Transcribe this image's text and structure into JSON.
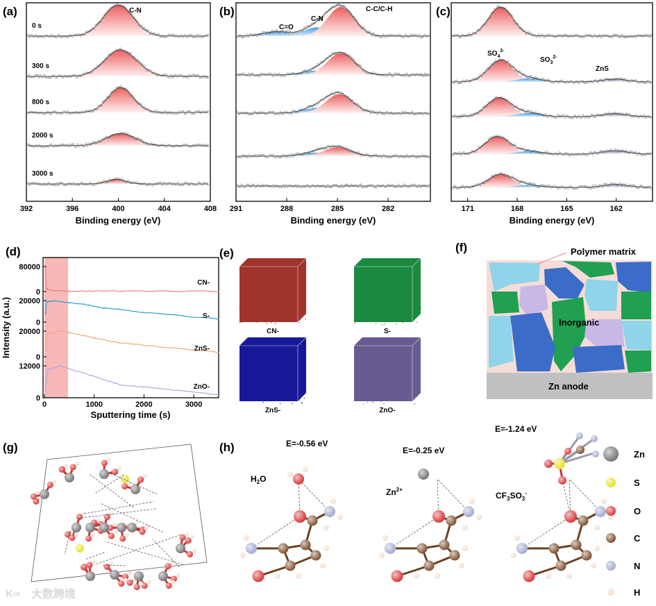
{
  "panel_labels": [
    "(a)",
    "(b)",
    "(c)",
    "(d)",
    "(e)",
    "(f)",
    "(g)",
    "(h)"
  ],
  "chart_data": [
    {
      "id": "a",
      "type": "line",
      "title": "",
      "xlabel": "Binding energy (eV)",
      "ylabel": "",
      "xlim": [
        392,
        408
      ],
      "xticks": [
        392,
        396,
        400,
        404,
        408
      ],
      "peak_label": "C-N",
      "series": [
        {
          "name": "0 s",
          "peaks": [
            {
              "center": 400.0,
              "height": 1.0,
              "width": 1.3
            }
          ]
        },
        {
          "name": "300 s",
          "peaks": [
            {
              "center": 400.2,
              "height": 0.85,
              "width": 1.4
            }
          ]
        },
        {
          "name": "800 s",
          "peaks": [
            {
              "center": 400.2,
              "height": 0.8,
              "width": 1.1
            }
          ]
        },
        {
          "name": "2000 s",
          "peaks": [
            {
              "center": 400.2,
              "height": 0.4,
              "width": 1.3
            }
          ]
        },
        {
          "name": "3000 s",
          "peaks": [
            {
              "center": 399.8,
              "height": 0.15,
              "width": 0.8
            }
          ]
        }
      ]
    },
    {
      "id": "b",
      "type": "line",
      "xlabel": "Binding energy (eV)",
      "xlim": [
        291,
        279.5
      ],
      "xticks": [
        291,
        288,
        285,
        282
      ],
      "peak_labels": [
        "C=O",
        "C-N",
        "C-C/C-H"
      ],
      "series": [
        {
          "name": "0 s",
          "peaks": [
            {
              "label": "C=O",
              "center": 288.6,
              "height": 0.15
            },
            {
              "label": "C-N",
              "center": 286.2,
              "height": 0.3
            },
            {
              "label": "C-C/C-H",
              "center": 284.8,
              "height": 1.0
            }
          ]
        },
        {
          "name": "300 s",
          "peaks": [
            {
              "label": "C-N",
              "center": 286.2,
              "height": 0.15
            },
            {
              "label": "C-C/C-H",
              "center": 284.8,
              "height": 0.75
            }
          ]
        },
        {
          "name": "800 s",
          "peaks": [
            {
              "label": "C-N",
              "center": 286.2,
              "height": 0.18
            },
            {
              "label": "C-C/C-H",
              "center": 284.9,
              "height": 0.65
            }
          ]
        },
        {
          "name": "2000 s",
          "peaks": [
            {
              "label": "C-N",
              "center": 286.3,
              "height": 0.12
            },
            {
              "label": "C-C/C-H",
              "center": 285.0,
              "height": 0.3
            }
          ]
        },
        {
          "name": "3000 s",
          "peaks": []
        }
      ]
    },
    {
      "id": "c",
      "type": "line",
      "xlabel": "Binding energy (eV)",
      "xlim": [
        172,
        159.8
      ],
      "xticks": [
        171,
        168,
        165,
        162
      ],
      "peak_labels": {
        "so4": "SO",
        "so4_sub": "4",
        "so4_sup": "2-",
        "so3": "SO",
        "so3_sub": "3",
        "so3_sup": "2-",
        "zns": "ZnS"
      },
      "series": [
        {
          "name": "0 s",
          "peaks": [
            {
              "label": "SO4",
              "center": 169.0,
              "height": 1.0
            }
          ]
        },
        {
          "name": "300 s",
          "peaks": [
            {
              "label": "SO4",
              "center": 169.0,
              "height": 0.75
            },
            {
              "label": "SO3",
              "center": 167.3,
              "height": 0.12
            },
            {
              "label": "ZnS",
              "center": 162.1,
              "height": 0.1
            }
          ]
        },
        {
          "name": "800 s",
          "peaks": [
            {
              "label": "SO4",
              "center": 169.1,
              "height": 0.65
            },
            {
              "label": "SO3",
              "center": 167.3,
              "height": 0.12
            },
            {
              "label": "ZnS",
              "center": 162.1,
              "height": 0.1
            }
          ]
        },
        {
          "name": "2000 s",
          "peaks": [
            {
              "label": "SO4",
              "center": 169.2,
              "height": 0.6
            },
            {
              "label": "SO3",
              "center": 167.3,
              "height": 0.1
            },
            {
              "label": "ZnS",
              "center": 162.1,
              "height": 0.12
            }
          ]
        },
        {
          "name": "3000 s",
          "peaks": [
            {
              "label": "SO4",
              "center": 169.0,
              "height": 0.45
            },
            {
              "label": "SO3",
              "center": 167.4,
              "height": 0.08
            },
            {
              "label": "ZnS",
              "center": 162.0,
              "height": 0.1
            }
          ]
        }
      ]
    },
    {
      "id": "d",
      "type": "line",
      "xlabel": "Sputtering time (s)",
      "ylabel": "Intensity (a.u.)",
      "xlim": [
        0,
        3500
      ],
      "xticks": [
        0,
        1000,
        2000,
        3000
      ],
      "shaded_region": [
        0,
        500
      ],
      "series": [
        {
          "name": "CN-",
          "color": "#e88080",
          "yticks": [
            0,
            80000
          ],
          "x": [
            20,
            40,
            100,
            300,
            500,
            1000,
            2000,
            3500
          ],
          "y": [
            80000,
            10000,
            5000,
            2000,
            1500,
            1500,
            1000,
            1000
          ]
        },
        {
          "name": "S-",
          "color": "#2a9fd0",
          "yticks": [
            0,
            20000
          ],
          "x": [
            20,
            40,
            200,
            500,
            800,
            1200,
            2000,
            3500
          ],
          "y": [
            6000,
            19000,
            19500,
            18000,
            16500,
            13000,
            9000,
            3000
          ]
        },
        {
          "name": "ZnS-",
          "color": "#f0a878",
          "yticks": [
            0,
            20000
          ],
          "x": [
            20,
            60,
            300,
            500,
            1000,
            1500,
            2000,
            3500
          ],
          "y": [
            4000,
            18000,
            20000,
            19000,
            14500,
            11000,
            9000,
            3500
          ]
        },
        {
          "name": "ZnO-",
          "color": "#b0a8d8",
          "yticks": [
            0,
            12000
          ],
          "x": [
            20,
            60,
            300,
            500,
            1000,
            1500,
            2000,
            3500
          ],
          "y": [
            2000,
            10500,
            12000,
            11000,
            8000,
            5000,
            4000,
            1200
          ]
        }
      ]
    }
  ],
  "panel_e": {
    "cubes": [
      {
        "label": "CN-",
        "color": "#a0342c"
      },
      {
        "label": "S-",
        "color": "#1a8a40"
      },
      {
        "label": "ZnS-",
        "color": "#18189a"
      },
      {
        "label": "ZnO-",
        "color": "#6a5a92"
      }
    ]
  },
  "panel_f": {
    "polymer_label": "Polymer matrix",
    "inorganic_label": "Inorganic",
    "anode_label": "Zn anode"
  },
  "panel_h": {
    "complexes": [
      {
        "energy": "E=-0.56 eV",
        "adsorbate": "H",
        "adsorbate_sub": "2",
        "adsorbate_tail": "O"
      },
      {
        "energy": "E=-0.25 eV",
        "adsorbate": "Zn",
        "adsorbate_sup": "2+"
      },
      {
        "energy": "E=-1.24 eV",
        "adsorbate": "CF",
        "adsorbate_sub": "3",
        "adsorbate_tail": "SO",
        "adsorbate_sub2": "3",
        "adsorbate_sup": "-"
      }
    ],
    "legend": [
      {
        "label": "Zn",
        "color": "#707070"
      },
      {
        "label": "S",
        "color": "#e8e020"
      },
      {
        "label": "O",
        "color": "#d83030"
      },
      {
        "label": "C",
        "color": "#7a4a28"
      },
      {
        "label": "N",
        "color": "#a0a8d0"
      },
      {
        "label": "H",
        "color": "#f4dccc"
      }
    ]
  },
  "watermark": "大数跨境"
}
